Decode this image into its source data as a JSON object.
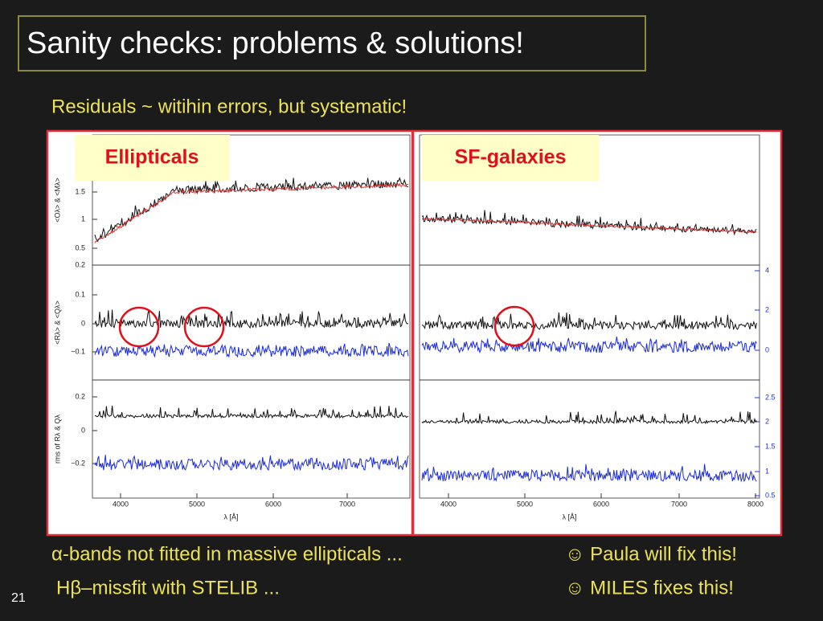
{
  "header": {
    "title": "Sanity checks: problems & solutions!"
  },
  "subtitle": "Residuals ~ witihin errors, but systematic!",
  "figure": {
    "labels": [
      "Ellipticals",
      "SF-galaxies"
    ],
    "y_axis_labels": [
      "<Oλ> & <Mλ>",
      "<Rλ> & <Qλ>",
      "rms of Rλ & Qλ"
    ],
    "x_axis_label": "λ [Å]",
    "left": {
      "yticks": [
        [
          "1.5",
          "1",
          "0.5"
        ],
        [
          "0.2",
          "0.1",
          "0",
          "−0.1"
        ],
        [
          "0.2",
          "0",
          "−0.2"
        ]
      ],
      "xticks": [
        "4000",
        "5000",
        "6000",
        "7000"
      ]
    },
    "right": {
      "y2ticks": [
        [
          "4",
          "2",
          "0"
        ],
        [
          "2.5",
          "2",
          "1.5",
          "1",
          "0.5"
        ]
      ],
      "xticks": [
        "4000",
        "5000",
        "6000",
        "7000",
        "8000"
      ]
    }
  },
  "footer": {
    "lines": [
      {
        "left": "α-bands not fitted in massive ellipticals ...",
        "right": "☺ Paula will fix this!"
      },
      {
        "left": "Hβ–missfit with STELIB ...",
        "right": "☺ MILES fixes this!"
      }
    ]
  },
  "slide_number": "21"
}
